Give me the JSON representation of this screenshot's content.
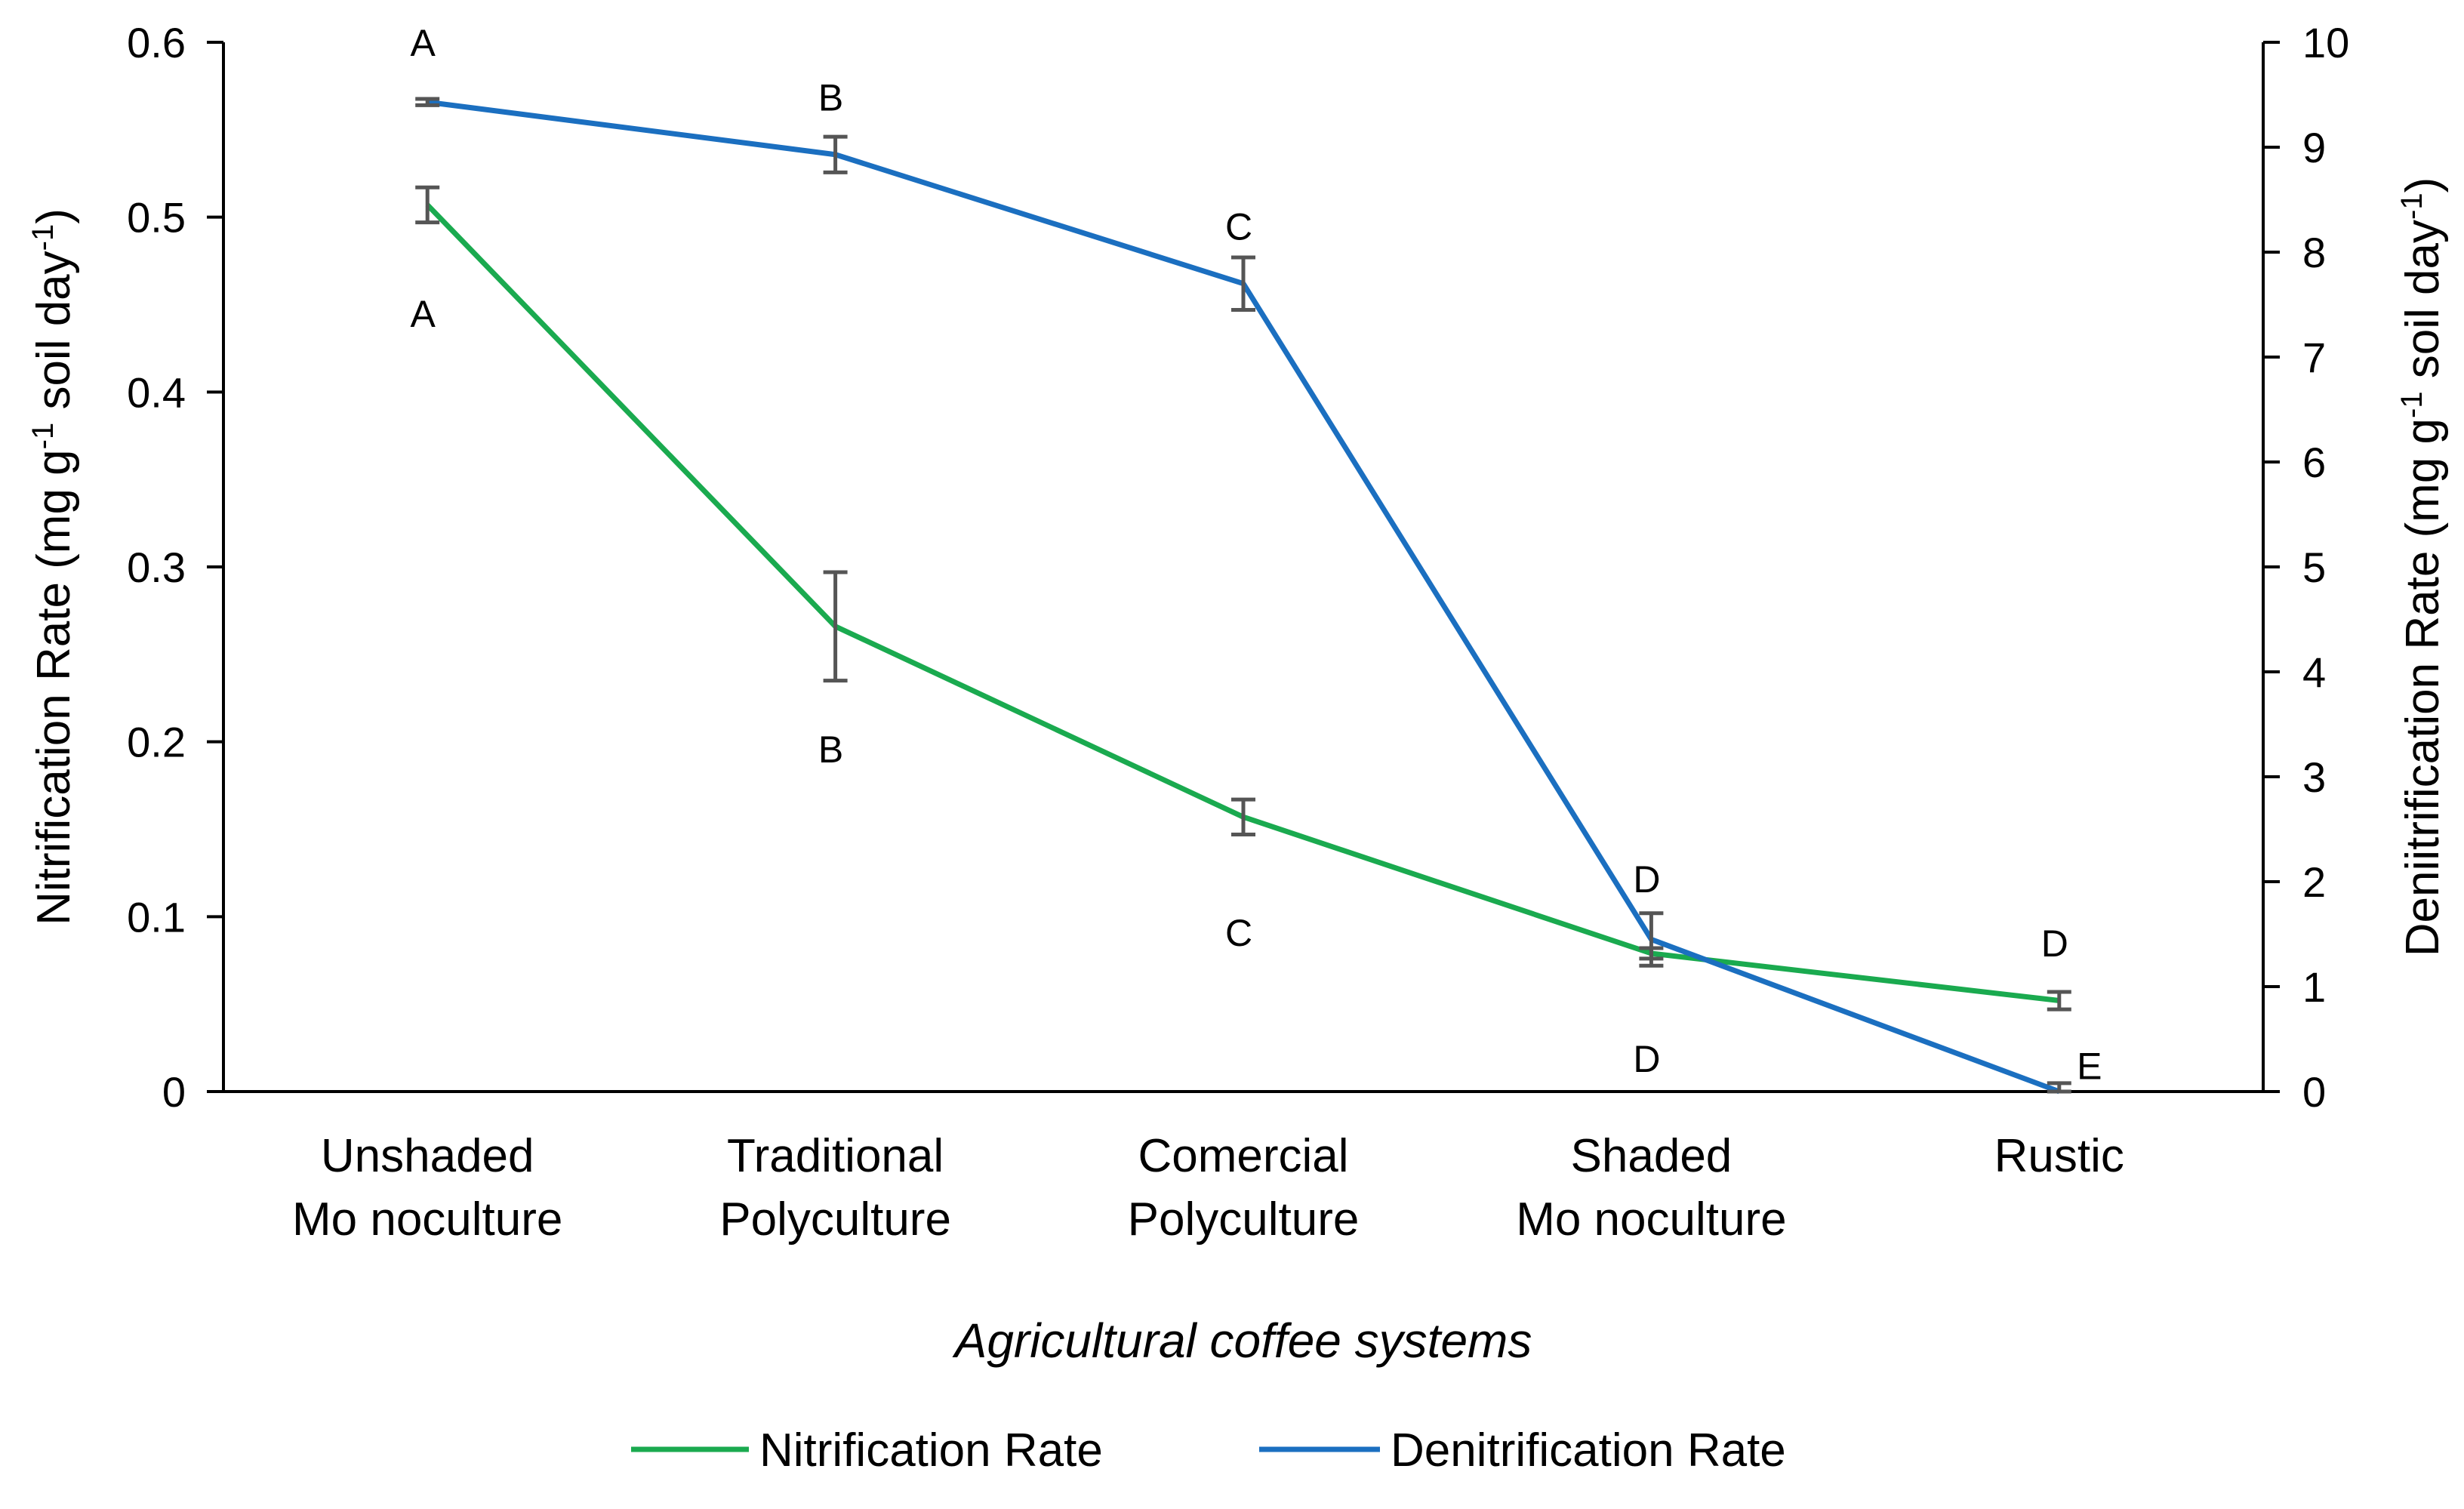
{
  "chart_data": {
    "type": "line",
    "title": "",
    "xlabel": "Agricultural coffee systems",
    "categories": [
      [
        "Unshaded",
        "Mo noculture"
      ],
      [
        "Traditional",
        "Polyculture"
      ],
      [
        "Comercial",
        "Polyculture"
      ],
      [
        "Shaded",
        "Mo noculture"
      ],
      [
        "Rustic"
      ]
    ],
    "y_left": {
      "label_parts": [
        "Nitrification Rate (mg g",
        "-1",
        " soil day",
        "-1",
        ")"
      ],
      "ylim": [
        0,
        0.6
      ],
      "ticks": [
        0,
        0.1,
        0.2,
        0.3,
        0.4,
        0.5,
        0.6
      ],
      "tick_labels": [
        "0",
        "0.1",
        "0.2",
        "0.3",
        "0.4",
        "0.5",
        "0.6"
      ]
    },
    "y_right": {
      "label_parts": [
        "Deniitrification Rate (mg g",
        "-1",
        " soil day",
        "-1",
        ")"
      ],
      "ylim": [
        0,
        10
      ],
      "ticks": [
        0,
        1,
        2,
        3,
        4,
        5,
        6,
        7,
        8,
        9,
        10
      ],
      "tick_labels": [
        "0",
        "1",
        "2",
        "3",
        "4",
        "5",
        "6",
        "7",
        "8",
        "9",
        "10"
      ]
    },
    "series": [
      {
        "name": "Nitrification Rate",
        "axis": "left",
        "color": "#1aaa4f",
        "values": [
          0.507,
          0.266,
          0.157,
          0.079,
          0.052
        ],
        "errors": [
          0.01,
          0.031,
          0.01,
          0.003,
          0.005
        ],
        "letters": [
          "A",
          "B",
          "C",
          "D",
          "D"
        ],
        "letter_offsets": [
          -0.062,
          -0.07,
          -0.066,
          -0.06,
          0.033
        ]
      },
      {
        "name": "Denitrification Rate",
        "axis": "right",
        "color": "#1b6fc0",
        "values": [
          9.43,
          8.93,
          7.7,
          1.45,
          0.0
        ],
        "errors": [
          0.03,
          0.17,
          0.25,
          0.25,
          0.08
        ],
        "letters": [
          "A",
          "B",
          "C",
          "D",
          "E"
        ],
        "letter_offsets": [
          0.57,
          0.55,
          0.55,
          0.58,
          0.25
        ]
      }
    ],
    "legend": "bottom",
    "colors": {
      "error_bar": "#555555",
      "axis": "#000000"
    }
  }
}
